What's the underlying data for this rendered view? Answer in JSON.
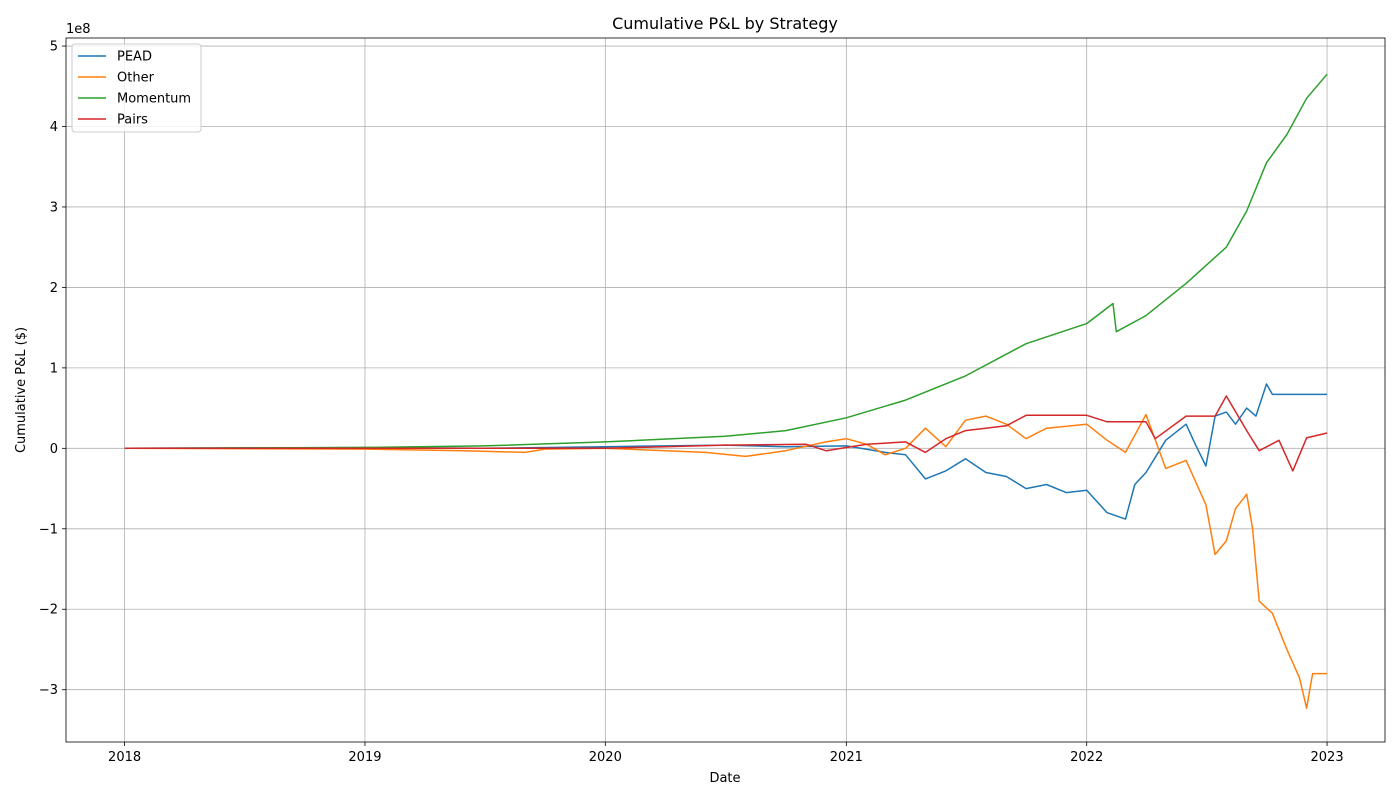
{
  "chart_data": {
    "type": "line",
    "title": "Cumulative P&L by Strategy",
    "xlabel": "Date",
    "ylabel": "Cumulative P&L ($)",
    "y_scale_label": "1e8",
    "x_tick_labels": [
      "2018",
      "2019",
      "2020",
      "2021",
      "2022",
      "2023"
    ],
    "y_tick_labels": [
      "−3",
      "−2",
      "−1",
      "0",
      "1",
      "2",
      "3",
      "4",
      "5"
    ],
    "y_ticks": [
      -3,
      -2,
      -1,
      0,
      1,
      2,
      3,
      4,
      5
    ],
    "xlim": [
      "2017-10-04",
      "2023-03-30"
    ],
    "ylim": [
      -3.65,
      5.1
    ],
    "grid": true,
    "legend_position": "top-left",
    "series": [
      {
        "name": "PEAD",
        "color": "#1f77b4",
        "points": [
          [
            "2018-01-01",
            0
          ],
          [
            "2018-07-01",
            0.005
          ],
          [
            "2019-01-01",
            0.01
          ],
          [
            "2019-07-01",
            0.0
          ],
          [
            "2020-01-01",
            0.02
          ],
          [
            "2020-04-01",
            0.03
          ],
          [
            "2020-07-01",
            0.04
          ],
          [
            "2020-10-01",
            0.02
          ],
          [
            "2021-01-01",
            0.03
          ],
          [
            "2021-03-01",
            -0.05
          ],
          [
            "2021-04-01",
            -0.08
          ],
          [
            "2021-05-01",
            -0.38
          ],
          [
            "2021-06-01",
            -0.28
          ],
          [
            "2021-07-01",
            -0.13
          ],
          [
            "2021-08-01",
            -0.3
          ],
          [
            "2021-09-01",
            -0.35
          ],
          [
            "2021-10-01",
            -0.5
          ],
          [
            "2021-11-01",
            -0.45
          ],
          [
            "2021-12-01",
            -0.55
          ],
          [
            "2022-01-01",
            -0.52
          ],
          [
            "2022-02-01",
            -0.8
          ],
          [
            "2022-03-01",
            -0.88
          ],
          [
            "2022-03-15",
            -0.45
          ],
          [
            "2022-04-01",
            -0.3
          ],
          [
            "2022-05-01",
            0.1
          ],
          [
            "2022-06-01",
            0.3
          ],
          [
            "2022-06-15",
            0.05
          ],
          [
            "2022-07-01",
            -0.22
          ],
          [
            "2022-07-15",
            0.4
          ],
          [
            "2022-08-01",
            0.45
          ],
          [
            "2022-08-15",
            0.3
          ],
          [
            "2022-09-01",
            0.5
          ],
          [
            "2022-09-15",
            0.4
          ],
          [
            "2022-10-01",
            0.8
          ],
          [
            "2022-10-10",
            0.67
          ],
          [
            "2023-01-01",
            0.67
          ]
        ]
      },
      {
        "name": "Other",
        "color": "#ff7f0e",
        "points": [
          [
            "2018-01-01",
            0
          ],
          [
            "2019-01-01",
            -0.01
          ],
          [
            "2019-06-01",
            -0.03
          ],
          [
            "2019-09-01",
            -0.05
          ],
          [
            "2019-10-01",
            -0.01
          ],
          [
            "2020-01-01",
            0.0
          ],
          [
            "2020-06-01",
            -0.05
          ],
          [
            "2020-08-01",
            -0.1
          ],
          [
            "2020-10-01",
            -0.03
          ],
          [
            "2020-12-01",
            0.08
          ],
          [
            "2021-01-01",
            0.12
          ],
          [
            "2021-02-01",
            0.05
          ],
          [
            "2021-03-01",
            -0.08
          ],
          [
            "2021-04-01",
            0.0
          ],
          [
            "2021-05-01",
            0.25
          ],
          [
            "2021-06-01",
            0.02
          ],
          [
            "2021-07-01",
            0.35
          ],
          [
            "2021-08-01",
            0.4
          ],
          [
            "2021-09-01",
            0.3
          ],
          [
            "2021-10-01",
            0.12
          ],
          [
            "2021-11-01",
            0.25
          ],
          [
            "2022-01-01",
            0.3
          ],
          [
            "2022-02-01",
            0.1
          ],
          [
            "2022-03-01",
            -0.05
          ],
          [
            "2022-04-01",
            0.42
          ],
          [
            "2022-05-01",
            -0.25
          ],
          [
            "2022-06-01",
            -0.15
          ],
          [
            "2022-07-01",
            -0.7
          ],
          [
            "2022-07-15",
            -1.32
          ],
          [
            "2022-08-01",
            -1.15
          ],
          [
            "2022-08-15",
            -0.75
          ],
          [
            "2022-09-01",
            -0.57
          ],
          [
            "2022-09-10",
            -1.0
          ],
          [
            "2022-09-20",
            -1.9
          ],
          [
            "2022-10-10",
            -2.05
          ],
          [
            "2022-11-01",
            -2.5
          ],
          [
            "2022-11-20",
            -2.85
          ],
          [
            "2022-12-01",
            -3.23
          ],
          [
            "2022-12-10",
            -2.8
          ],
          [
            "2023-01-01",
            -2.8
          ]
        ]
      },
      {
        "name": "Momentum",
        "color": "#2ca02c",
        "points": [
          [
            "2018-01-01",
            0
          ],
          [
            "2019-01-01",
            0.01
          ],
          [
            "2019-07-01",
            0.03
          ],
          [
            "2020-01-01",
            0.08
          ],
          [
            "2020-07-01",
            0.15
          ],
          [
            "2020-10-01",
            0.22
          ],
          [
            "2021-01-01",
            0.38
          ],
          [
            "2021-04-01",
            0.6
          ],
          [
            "2021-07-01",
            0.9
          ],
          [
            "2021-10-01",
            1.3
          ],
          [
            "2022-01-01",
            1.55
          ],
          [
            "2022-02-10",
            1.8
          ],
          [
            "2022-02-15",
            1.45
          ],
          [
            "2022-04-01",
            1.65
          ],
          [
            "2022-06-01",
            2.05
          ],
          [
            "2022-08-01",
            2.5
          ],
          [
            "2022-09-01",
            2.95
          ],
          [
            "2022-10-01",
            3.55
          ],
          [
            "2022-11-01",
            3.9
          ],
          [
            "2022-12-01",
            4.35
          ],
          [
            "2023-01-01",
            4.65
          ]
        ]
      },
      {
        "name": "Pairs",
        "color": "#d62728",
        "points": [
          [
            "2018-01-01",
            0
          ],
          [
            "2019-01-01",
            0.0
          ],
          [
            "2020-01-01",
            0.0
          ],
          [
            "2020-07-01",
            0.04
          ],
          [
            "2020-11-01",
            0.05
          ],
          [
            "2020-12-01",
            -0.03
          ],
          [
            "2021-02-01",
            0.05
          ],
          [
            "2021-04-01",
            0.08
          ],
          [
            "2021-05-01",
            -0.05
          ],
          [
            "2021-06-01",
            0.12
          ],
          [
            "2021-07-01",
            0.22
          ],
          [
            "2021-09-01",
            0.28
          ],
          [
            "2021-10-01",
            0.41
          ],
          [
            "2022-01-01",
            0.41
          ],
          [
            "2022-02-01",
            0.33
          ],
          [
            "2022-04-01",
            0.33
          ],
          [
            "2022-04-15",
            0.12
          ],
          [
            "2022-06-01",
            0.4
          ],
          [
            "2022-07-15",
            0.4
          ],
          [
            "2022-08-01",
            0.65
          ],
          [
            "2022-09-01",
            0.22
          ],
          [
            "2022-09-20",
            -0.03
          ],
          [
            "2022-10-20",
            0.1
          ],
          [
            "2022-11-10",
            -0.28
          ],
          [
            "2022-12-01",
            0.13
          ],
          [
            "2023-01-01",
            0.19
          ]
        ]
      }
    ]
  }
}
